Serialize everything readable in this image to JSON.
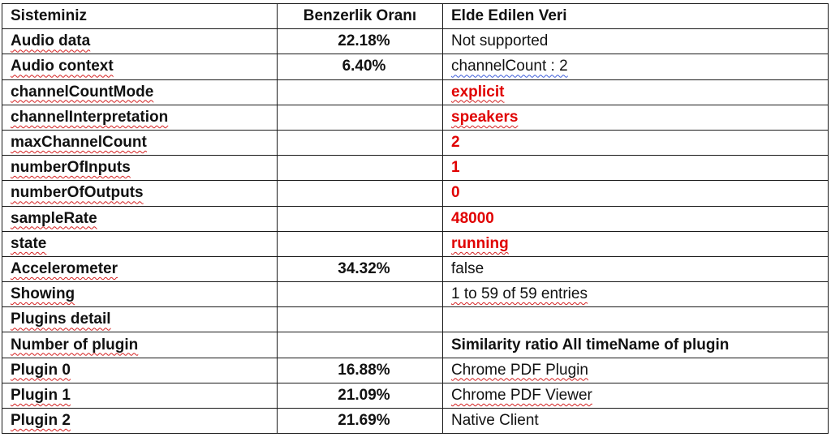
{
  "table": {
    "headers": [
      "Sisteminiz",
      "Benzerlik Oranı",
      "Elde Edilen Veri"
    ],
    "rows": [
      {
        "label": "Audio data",
        "ratio": "22.18%",
        "value": "Not supported",
        "value_style": "normal"
      },
      {
        "label": "Audio context",
        "ratio": "6.40%",
        "value": "channelCount : 2",
        "value_style": "normal"
      },
      {
        "label": "channelCountMode",
        "ratio": "",
        "value": "explicit",
        "value_style": "red"
      },
      {
        "label": "channelInterpretation",
        "ratio": "",
        "value": "speakers",
        "value_style": "red"
      },
      {
        "label": "maxChannelCount",
        "ratio": "",
        "value": "2",
        "value_style": "red"
      },
      {
        "label": "numberOfInputs",
        "ratio": "",
        "value": "1",
        "value_style": "red"
      },
      {
        "label": "numberOfOutputs",
        "ratio": "",
        "value": "0",
        "value_style": "red"
      },
      {
        "label": "sampleRate",
        "ratio": "",
        "value": "48000",
        "value_style": "red"
      },
      {
        "label": "state",
        "ratio": "",
        "value": "running",
        "value_style": "red"
      },
      {
        "label": "Accelerometer",
        "ratio": "34.32%",
        "value": "false",
        "value_style": "normal"
      },
      {
        "label": "Showing",
        "ratio": "",
        "value": "1 to 59 of 59 entries",
        "value_style": "normal"
      },
      {
        "label": "Plugins detail",
        "ratio": "",
        "value": "",
        "value_style": "normal"
      },
      {
        "label": "Number of plugin",
        "ratio": "",
        "value": "Similarity ratio All timeName of plugin",
        "value_style": "bold"
      },
      {
        "label": "Plugin 0",
        "ratio": "16.88%",
        "value": "Chrome PDF Plugin",
        "value_style": "normal"
      },
      {
        "label": "Plugin 1",
        "ratio": "21.09%",
        "value": "Chrome PDF Viewer",
        "value_style": "normal"
      },
      {
        "label": "Plugin 2",
        "ratio": "21.69%",
        "value": "Native Client",
        "value_style": "normal"
      }
    ]
  },
  "colors": {
    "highlight_red": "#e00000",
    "text": "#111111",
    "border": "#1a1a1a"
  }
}
